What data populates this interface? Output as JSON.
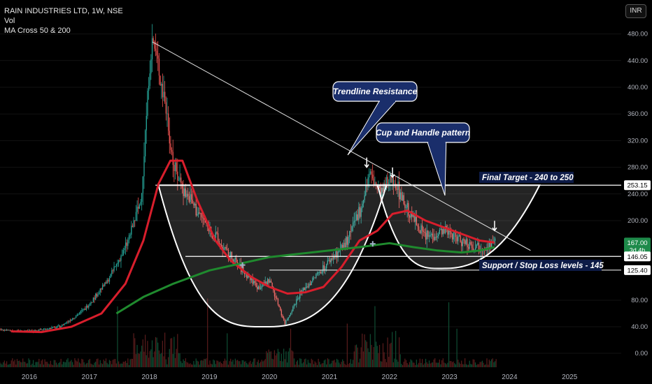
{
  "header": {
    "symbol": "RAIN INDUSTRIES LTD, 1W, NSE",
    "volume_label": "Vol",
    "indicator_label": "MA Cross 50 & 200"
  },
  "currency_button": "INR",
  "chart_data": {
    "type": "candlestick",
    "ylim": [
      0,
      500
    ],
    "y_ticks": [
      0,
      40,
      80,
      200,
      240,
      280,
      320,
      360,
      400,
      440,
      480
    ],
    "y_tick_labels": [
      "0.00",
      "40.00",
      "80.00",
      "200.00",
      "240.00",
      "280.00",
      "320.00",
      "360.00",
      "400.00",
      "440.00",
      "480.00"
    ],
    "x_ticks": [
      2016,
      2017,
      2018,
      2019,
      2020,
      2021,
      2022,
      2023,
      2024,
      2025
    ],
    "x_tick_labels": [
      "2016",
      "2017",
      "2018",
      "2019",
      "2020",
      "2021",
      "2022",
      "2023",
      "2024",
      "2025"
    ],
    "price_path": [
      [
        2015.5,
        35
      ],
      [
        2016.0,
        33
      ],
      [
        2016.5,
        40
      ],
      [
        2016.9,
        65
      ],
      [
        2017.3,
        110
      ],
      [
        2017.6,
        160
      ],
      [
        2017.85,
        230
      ],
      [
        2018.0,
        440
      ],
      [
        2018.05,
        470
      ],
      [
        2018.25,
        380
      ],
      [
        2018.4,
        280
      ],
      [
        2018.6,
        240
      ],
      [
        2018.9,
        200
      ],
      [
        2019.2,
        160
      ],
      [
        2019.5,
        130
      ],
      [
        2019.8,
        100
      ],
      [
        2020.0,
        110
      ],
      [
        2020.25,
        45
      ],
      [
        2020.5,
        90
      ],
      [
        2020.8,
        120
      ],
      [
        2021.0,
        140
      ],
      [
        2021.3,
        170
      ],
      [
        2021.55,
        230
      ],
      [
        2021.65,
        270
      ],
      [
        2021.85,
        240
      ],
      [
        2022.05,
        265
      ],
      [
        2022.3,
        215
      ],
      [
        2022.6,
        175
      ],
      [
        2022.9,
        185
      ],
      [
        2023.2,
        170
      ],
      [
        2023.5,
        160
      ],
      [
        2023.75,
        167
      ]
    ],
    "series": [
      {
        "name": "MA 50",
        "color": "#d81e2c",
        "values": [
          [
            2015.7,
            33
          ],
          [
            2016.2,
            32
          ],
          [
            2016.7,
            40
          ],
          [
            2017.2,
            60
          ],
          [
            2017.6,
            105
          ],
          [
            2017.9,
            170
          ],
          [
            2018.15,
            255
          ],
          [
            2018.35,
            290
          ],
          [
            2018.55,
            290
          ],
          [
            2018.8,
            230
          ],
          [
            2019.1,
            170
          ],
          [
            2019.35,
            140
          ],
          [
            2019.7,
            115
          ],
          [
            2020.0,
            100
          ],
          [
            2020.3,
            90
          ],
          [
            2020.6,
            92
          ],
          [
            2020.9,
            100
          ],
          [
            2021.2,
            130
          ],
          [
            2021.5,
            170
          ],
          [
            2021.8,
            185
          ],
          [
            2022.05,
            210
          ],
          [
            2022.3,
            215
          ],
          [
            2022.6,
            200
          ],
          [
            2022.9,
            190
          ],
          [
            2023.2,
            180
          ],
          [
            2023.5,
            170
          ],
          [
            2023.75,
            167
          ]
        ]
      },
      {
        "name": "MA 200",
        "color": "#1f8a2e",
        "values": [
          [
            2017.45,
            60
          ],
          [
            2017.9,
            85
          ],
          [
            2018.4,
            105
          ],
          [
            2019.0,
            125
          ],
          [
            2019.5,
            135
          ],
          [
            2020.0,
            145
          ],
          [
            2020.5,
            150
          ],
          [
            2021.0,
            155
          ],
          [
            2021.5,
            160
          ],
          [
            2022.0,
            166
          ],
          [
            2022.4,
            160
          ],
          [
            2022.8,
            155
          ],
          [
            2023.2,
            152
          ],
          [
            2023.5,
            155
          ],
          [
            2023.75,
            160
          ]
        ]
      }
    ],
    "price_tags": [
      {
        "value": 253.15,
        "label": "253.15",
        "color": "#ffffff",
        "text_color": "#000000"
      },
      {
        "value": 167.0,
        "label": "167.00",
        "sublabel": "3d 4h",
        "color": "#1e8a4a",
        "text_color": "#ffffff"
      },
      {
        "value": 146.05,
        "label": "146.05",
        "color": "#ffffff",
        "text_color": "#000000"
      },
      {
        "value": 125.4,
        "label": "125.40",
        "color": "#ffffff",
        "text_color": "#000000"
      }
    ],
    "annotations": {
      "trendline_label": "Trendline Resistance",
      "pattern_label": "Cup and Handle pattern",
      "target_label": "Final Target - 240 to 250",
      "support_label": "Support / Stop Loss levels - 145"
    },
    "trendline": [
      [
        2018.05,
        468
      ],
      [
        2024.35,
        155
      ]
    ],
    "levels": {
      "target": 253.15,
      "support": 146.05,
      "support2": 125.4
    },
    "cup": {
      "left_x": 2018.15,
      "bottom_x": 2020.0,
      "bottom_y": 40,
      "right_x": 2021.95,
      "top_y": 253.15
    },
    "handle": {
      "left_x": 2021.8,
      "bottom_x": 2022.95,
      "bottom_y": 128,
      "right_x": 2024.5,
      "top_y": 253.15
    },
    "arrows": [
      [
        2021.62,
        280
      ],
      [
        2022.05,
        265
      ],
      [
        2023.75,
        185
      ]
    ]
  }
}
